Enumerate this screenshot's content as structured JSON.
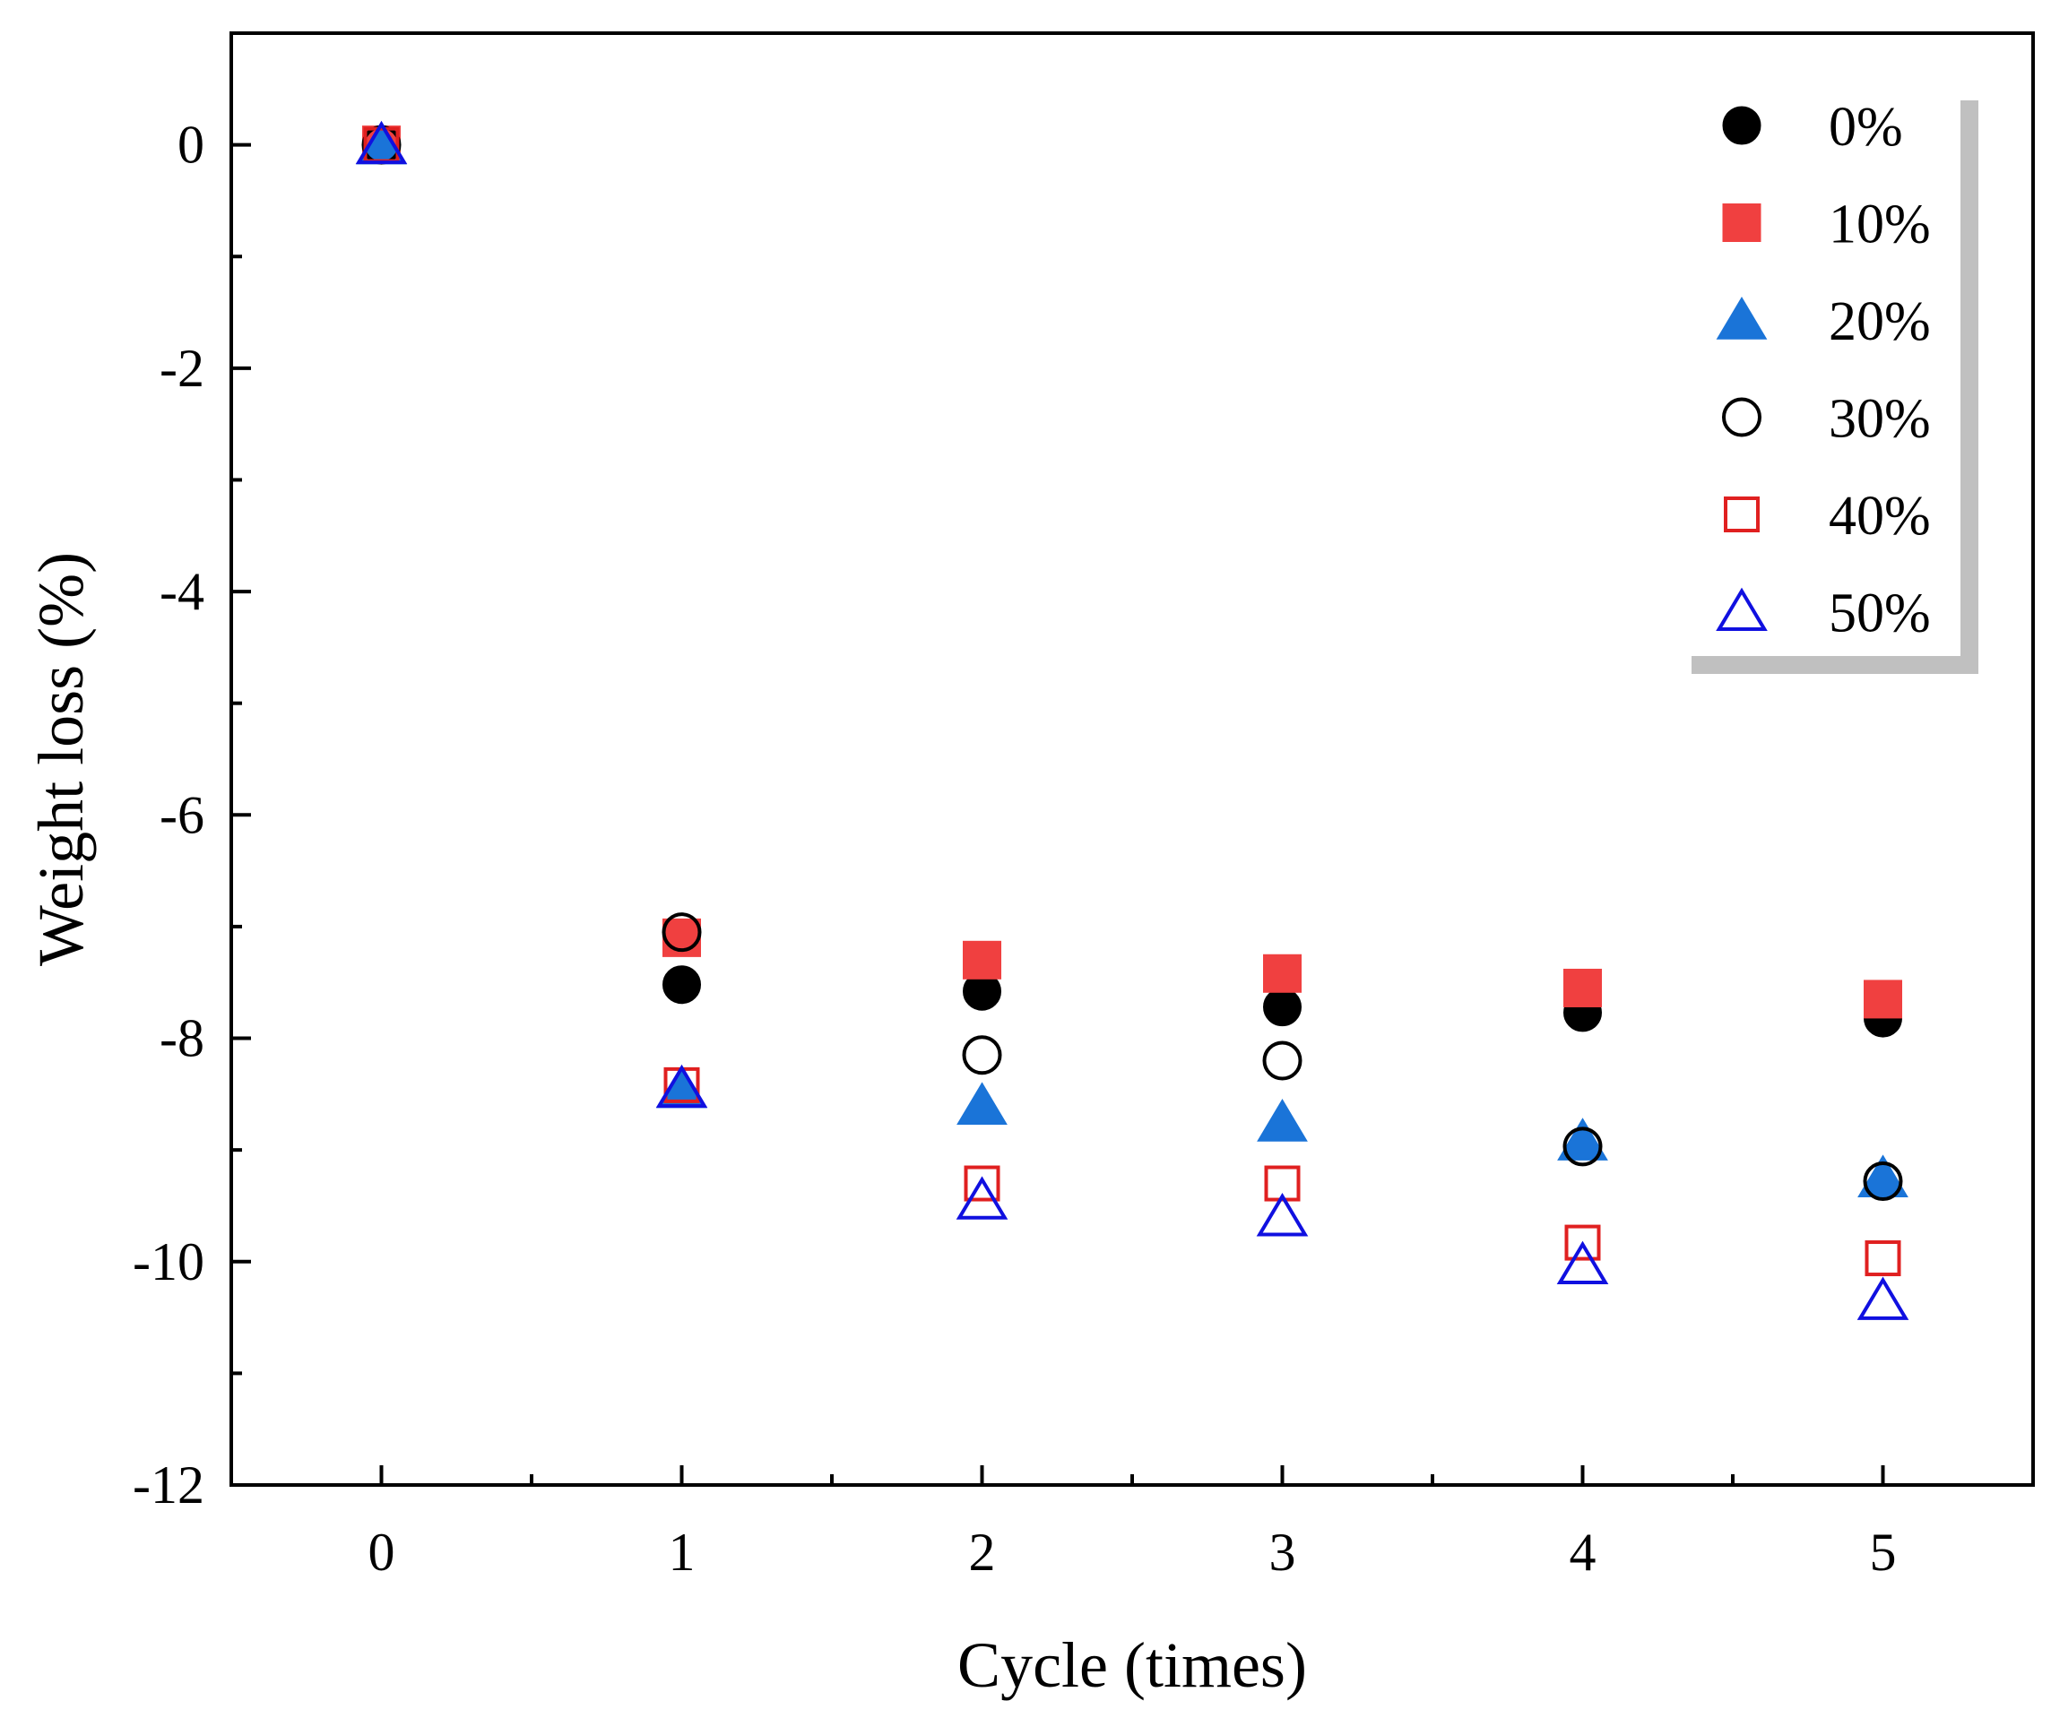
{
  "chart_data": {
    "type": "scatter",
    "title": "",
    "xlabel": "Cycle (times)",
    "ylabel": "Weight loss (%)",
    "xlim": [
      -0.5,
      5.5
    ],
    "ylim": [
      -12,
      1
    ],
    "x_ticks": [
      0,
      1,
      2,
      3,
      4,
      5
    ],
    "x_tick_labels": [
      "0",
      "1",
      "2",
      "3",
      "4",
      "5"
    ],
    "y_ticks": [
      0,
      -2,
      -4,
      -6,
      -8,
      -10,
      -12
    ],
    "y_tick_labels": [
      "0",
      "-2",
      "-4",
      "-6",
      "-8",
      "-10",
      "-12"
    ],
    "grid": false,
    "legend_position": "top-right",
    "x": [
      0,
      1,
      2,
      3,
      4,
      5
    ],
    "series": [
      {
        "name": "0%",
        "marker": "circle",
        "filled": true,
        "color": "#000000",
        "values": [
          0,
          -7.52,
          -7.58,
          -7.72,
          -7.77,
          -7.82
        ]
      },
      {
        "name": "10%",
        "marker": "square",
        "filled": true,
        "color": "#f04040",
        "values": [
          0,
          -7.1,
          -7.3,
          -7.42,
          -7.55,
          -7.65
        ]
      },
      {
        "name": "20%",
        "marker": "triangle",
        "filled": true,
        "color": "#1a74d8",
        "values": [
          0,
          -8.45,
          -8.6,
          -8.75,
          -8.92,
          -9.25
        ]
      },
      {
        "name": "30%",
        "marker": "circle",
        "filled": false,
        "color": "#000000",
        "values": [
          0,
          -7.05,
          -8.15,
          -8.2,
          -8.97,
          -9.28
        ]
      },
      {
        "name": "40%",
        "marker": "square",
        "filled": false,
        "color": "#e02020",
        "values": [
          0,
          -8.42,
          -9.3,
          -9.3,
          -9.83,
          -9.97
        ]
      },
      {
        "name": "50%",
        "marker": "triangle",
        "filled": false,
        "color": "#1010e0",
        "values": [
          0,
          -8.45,
          -9.45,
          -9.6,
          -10.03,
          -10.35
        ]
      }
    ]
  }
}
